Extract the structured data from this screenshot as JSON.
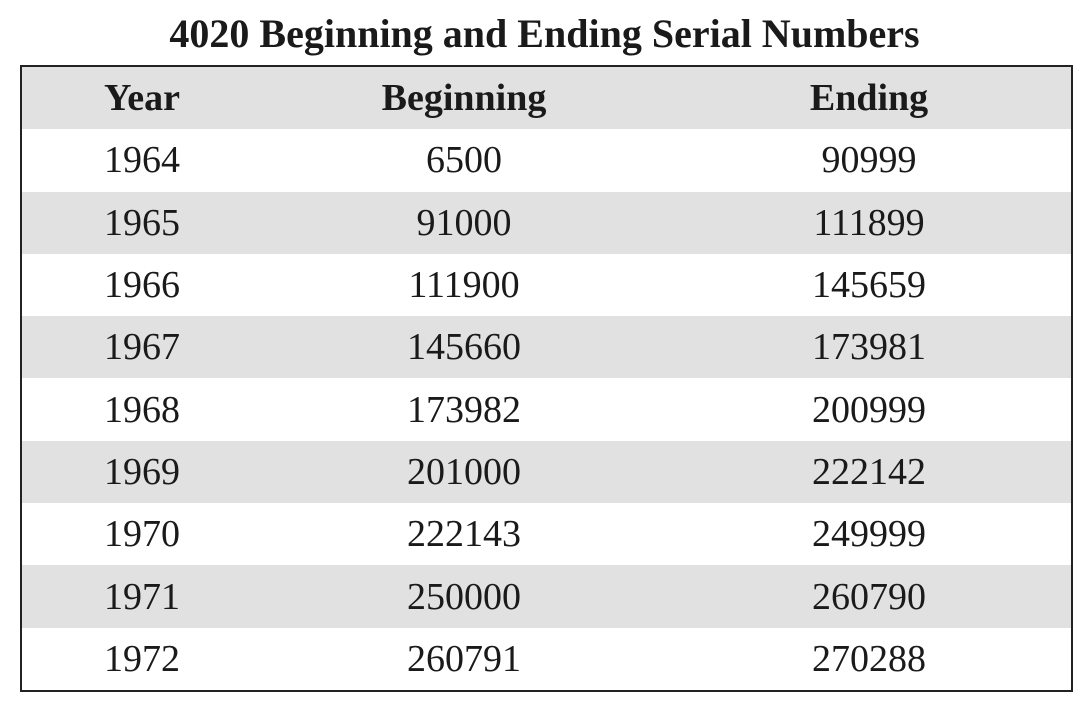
{
  "title": "4020 Beginning and Ending Serial Numbers",
  "table": {
    "header": [
      "Year",
      "Beginning",
      "Ending"
    ],
    "rows": [
      [
        "1964",
        "6500",
        "90999"
      ],
      [
        "1965",
        "91000",
        "111899"
      ],
      [
        "1966",
        "111900",
        "145659"
      ],
      [
        "1967",
        "145660",
        "173981"
      ],
      [
        "1968",
        "173982",
        "200999"
      ],
      [
        "1969",
        "201000",
        "222142"
      ],
      [
        "1970",
        "222143",
        "249999"
      ],
      [
        "1971",
        "250000",
        "260790"
      ],
      [
        "1972",
        "260791",
        "270288"
      ]
    ]
  }
}
